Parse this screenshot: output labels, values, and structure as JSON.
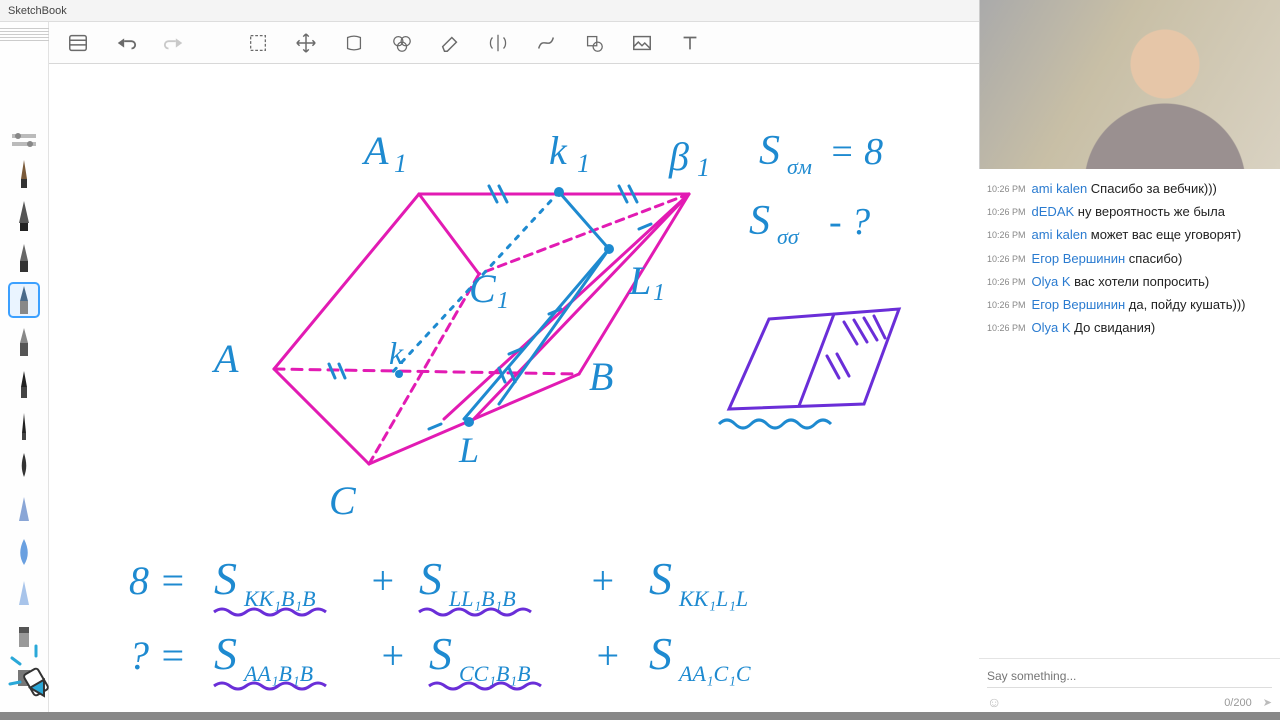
{
  "app": {
    "title": "SketchBook"
  },
  "toolbar": {
    "icons": [
      "list",
      "undo",
      "redo",
      "selection",
      "move",
      "layers",
      "fill",
      "eraser",
      "symmetry",
      "spline",
      "shape",
      "image",
      "text"
    ]
  },
  "brush_palette": {
    "selected_index": 4,
    "count": 13
  },
  "colors": {
    "ink_blue": "#1e8ad0",
    "magenta": "#e21bb3",
    "purple": "#6a2ed8",
    "canvas_bg": "#ffffff",
    "ui_border": "#d8d8d8",
    "chat_name": "#2a7bd0"
  },
  "diagram": {
    "type": "handwritten-geometry",
    "vertex_labels": [
      "A₁",
      "k₁",
      "β₁",
      "A",
      "B",
      "C",
      "C₁",
      "L₁",
      "k",
      "L"
    ],
    "formulas": [
      "S_σм = 8",
      "S_σσ - ?",
      "8 = S_KK₁B₁B + S_LL₁B₁B + S_KK₁L₁L",
      "? = S_AA₁B₁B + S_CC₁B₁B + S_AA₁C₁C"
    ]
  },
  "chat": {
    "messages": [
      {
        "time": "10:26 PM",
        "name": "ami kalen",
        "text": "Спасибо за вебчик)))"
      },
      {
        "time": "10:26 PM",
        "name": "dEDAK",
        "text": "ну вероятность же была"
      },
      {
        "time": "10:26 PM",
        "name": "ami kalen",
        "text": "может вас еще уговорят)"
      },
      {
        "time": "10:26 PM",
        "name": "Егор Вершинин",
        "text": "спасибо)"
      },
      {
        "time": "10:26 PM",
        "name": "Olya K",
        "text": "вас хотели попросить)"
      },
      {
        "time": "10:26 PM",
        "name": "Егор Вершинин",
        "text": "да, пойду кушать)))"
      },
      {
        "time": "10:26 PM",
        "name": "Olya K",
        "text": "До свидания)"
      }
    ],
    "placeholder": "Say something...",
    "counter": "0/200"
  }
}
